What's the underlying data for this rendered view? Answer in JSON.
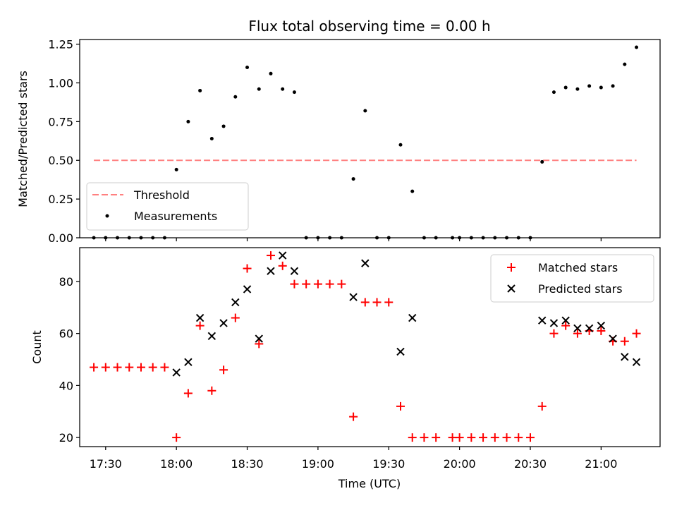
{
  "chart_data": [
    {
      "type": "scatter",
      "title": "Flux total observing time = 0.00 h",
      "xlabel": "",
      "ylabel": "Matched/Predicted stars",
      "xlim": [
        "17:19",
        "21:25"
      ],
      "ylim": [
        0,
        1.28
      ],
      "yticks": [
        0.0,
        0.25,
        0.5,
        0.75,
        1.0,
        1.25
      ],
      "ytick_labels": [
        "0.00",
        "0.25",
        "0.50",
        "0.75",
        "1.00",
        "1.25"
      ],
      "legend": "lower-left",
      "series": [
        {
          "name": "Threshold",
          "kind": "dashed-line",
          "color": "#ff8080",
          "x": [
            "17:25",
            "21:15"
          ],
          "y": [
            0.5,
            0.5
          ]
        },
        {
          "name": "Measurements",
          "kind": "dot",
          "color": "#000000",
          "x": [
            "17:25",
            "17:30",
            "17:35",
            "17:40",
            "17:45",
            "17:50",
            "17:55",
            "18:00",
            "18:05",
            "18:10",
            "18:15",
            "18:20",
            "18:25",
            "18:30",
            "18:35",
            "18:40",
            "18:45",
            "18:50",
            "18:55",
            "19:00",
            "19:05",
            "19:10",
            "19:15",
            "19:20",
            "19:25",
            "19:30",
            "19:35",
            "19:40",
            "19:45",
            "19:50",
            "19:57",
            "20:00",
            "20:05",
            "20:10",
            "20:15",
            "20:20",
            "20:25",
            "20:30",
            "20:35",
            "20:40",
            "20:45",
            "20:50",
            "20:55",
            "21:00",
            "21:05",
            "21:10",
            "21:15"
          ],
          "y": [
            0,
            0,
            0,
            0,
            0,
            0,
            0,
            0.44,
            0.75,
            0.95,
            0.64,
            0.72,
            0.91,
            1.1,
            0.96,
            1.06,
            0.96,
            0.94,
            0,
            0,
            0,
            0,
            0.38,
            0.82,
            0,
            0,
            0.6,
            0.3,
            0,
            0,
            0,
            0,
            0,
            0,
            0,
            0,
            0,
            0,
            0.49,
            0.94,
            0.97,
            0.96,
            0.98,
            0.97,
            0.98,
            1.12,
            1.23
          ]
        }
      ]
    },
    {
      "type": "scatter",
      "title": "",
      "xlabel": "Time (UTC)",
      "ylabel": "Count",
      "xlim": [
        "17:19",
        "21:25"
      ],
      "ylim": [
        16.5,
        93
      ],
      "yticks": [
        20,
        40,
        60,
        80
      ],
      "ytick_labels": [
        "20",
        "40",
        "60",
        "80"
      ],
      "xticks": [
        "17:30",
        "18:00",
        "18:30",
        "19:00",
        "19:30",
        "20:00",
        "20:30",
        "21:00"
      ],
      "xtick_labels": [
        "17:30",
        "18:00",
        "18:30",
        "19:00",
        "19:30",
        "20:00",
        "20:30",
        "21:00"
      ],
      "legend": "upper-right",
      "series": [
        {
          "name": "Matched stars",
          "kind": "plus",
          "color": "#ff0000",
          "x": [
            "17:25",
            "17:30",
            "17:35",
            "17:40",
            "17:45",
            "17:50",
            "17:55",
            "18:00",
            "18:05",
            "18:10",
            "18:15",
            "18:20",
            "18:25",
            "18:30",
            "18:35",
            "18:40",
            "18:45",
            "18:50",
            "18:55",
            "19:00",
            "19:05",
            "19:10",
            "19:15",
            "19:20",
            "19:25",
            "19:30",
            "19:35",
            "19:40",
            "19:45",
            "19:50",
            "19:57",
            "20:00",
            "20:05",
            "20:10",
            "20:15",
            "20:20",
            "20:25",
            "20:30",
            "20:35",
            "20:40",
            "20:45",
            "20:50",
            "20:55",
            "21:00",
            "21:05",
            "21:10",
            "21:15"
          ],
          "y": [
            47,
            47,
            47,
            47,
            47,
            47,
            47,
            20,
            37,
            63,
            38,
            46,
            66,
            85,
            56,
            90,
            86,
            79,
            79,
            79,
            79,
            79,
            28,
            72,
            72,
            72,
            32,
            20,
            20,
            20,
            20,
            20,
            20,
            20,
            20,
            20,
            20,
            20,
            32,
            60,
            63,
            60,
            61,
            61,
            57,
            57,
            60
          ]
        },
        {
          "name": "Predicted stars",
          "kind": "cross",
          "color": "#000000",
          "x": [
            "18:00",
            "18:05",
            "18:10",
            "18:15",
            "18:20",
            "18:25",
            "18:30",
            "18:35",
            "18:40",
            "18:45",
            "18:50",
            "19:15",
            "19:20",
            "19:35",
            "19:40",
            "20:35",
            "20:40",
            "20:45",
            "20:50",
            "20:55",
            "21:00",
            "21:05",
            "21:10",
            "21:15"
          ],
          "y": [
            45,
            49,
            66,
            59,
            64,
            72,
            77,
            58,
            84,
            90,
            84,
            74,
            87,
            53,
            66,
            65,
            64,
            65,
            62,
            62,
            63,
            58,
            51,
            49
          ]
        }
      ]
    }
  ]
}
